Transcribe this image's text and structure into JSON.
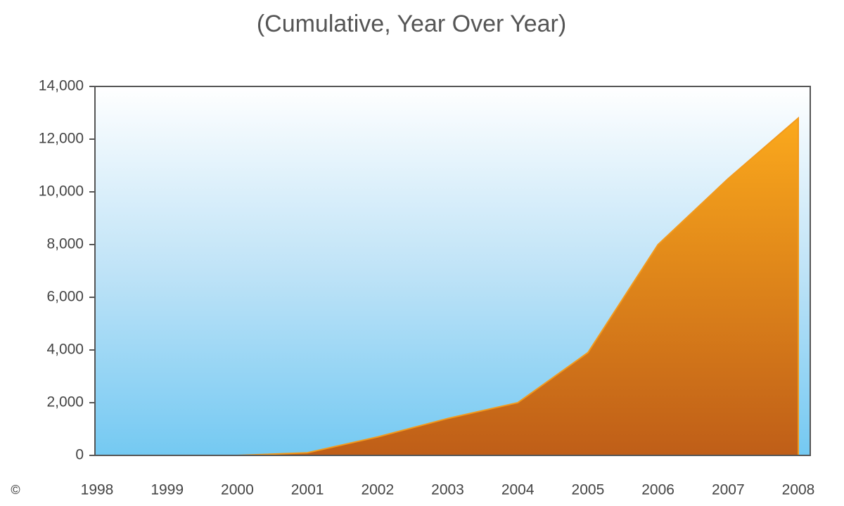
{
  "chart_data": {
    "type": "area",
    "subtitle": "(Cumulative, Year Over Year)",
    "categories": [
      "1998",
      "1999",
      "2000",
      "2001",
      "2002",
      "2003",
      "2004",
      "2005",
      "2006",
      "2007",
      "2008"
    ],
    "values": [
      0,
      0,
      0,
      100,
      700,
      1400,
      2000,
      3900,
      8000,
      10500,
      12800
    ],
    "color": "#f39a1c",
    "ylim": [
      0,
      14000
    ],
    "yticks": [
      0,
      {
        "value": 2000,
        "label": "2,000"
      },
      {
        "value": 4000,
        "label": "4,000"
      },
      {
        "value": 6000,
        "label": "6,000"
      },
      {
        "value": 8000,
        "label": "8,000"
      },
      {
        "value": 10000,
        "label": "10,000"
      },
      {
        "value": 12000,
        "label": "12,000"
      },
      {
        "value": 14000,
        "label": "14,000"
      }
    ],
    "copyright": "©"
  }
}
